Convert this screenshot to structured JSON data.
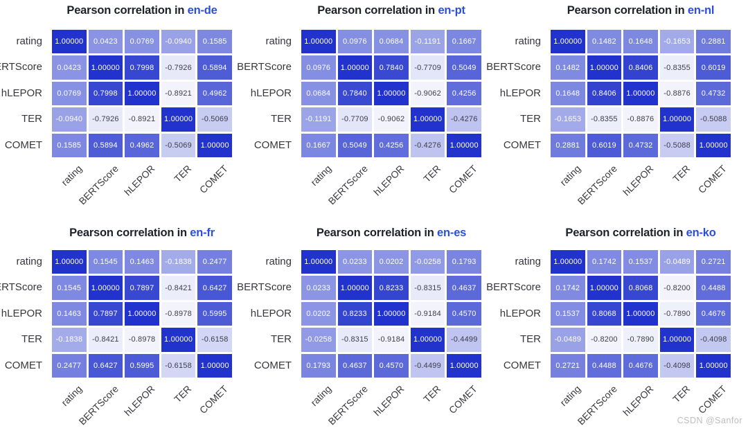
{
  "page": {
    "watermark": "CSDN @Sanfor"
  },
  "colors": {
    "cmap_low": "#f2f3fb",
    "cmap_high": "#2133cc",
    "title_text": "#1d2129",
    "title_lang": "#2c4fdb",
    "axis_label_text": "#36363e",
    "cell_text_light": "#ffffff",
    "cell_text_dark": "#3c3d4a",
    "watermark_text": "#bdbdbd"
  },
  "chart_data": [
    {
      "type": "heatmap",
      "title_prefix": "Pearson correlation in ",
      "title_lang": "en-de",
      "title": "Pearson correlation in en-de",
      "categories": [
        "rating",
        "BERTScore",
        "hLEPOR",
        "TER",
        "COMET"
      ],
      "matrix": [
        [
          1.0,
          0.0423,
          0.0769,
          -0.094,
          0.1585
        ],
        [
          0.0423,
          1.0,
          0.7998,
          -0.7926,
          0.5894
        ],
        [
          0.0769,
          0.7998,
          1.0,
          -0.8921,
          0.4962
        ],
        [
          -0.094,
          -0.7926,
          -0.8921,
          1.0,
          -0.5069
        ],
        [
          0.1585,
          0.5894,
          0.4962,
          -0.5069,
          1.0
        ]
      ]
    },
    {
      "type": "heatmap",
      "title_prefix": "Pearson correlation in ",
      "title_lang": "en-pt",
      "title": "Pearson correlation in en-pt",
      "categories": [
        "rating",
        "BERTScore",
        "hLEPOR",
        "TER",
        "COMET"
      ],
      "matrix": [
        [
          1.0,
          0.0976,
          0.0684,
          -0.1191,
          0.1667
        ],
        [
          0.0976,
          1.0,
          0.784,
          -0.7709,
          0.5049
        ],
        [
          0.0684,
          0.784,
          1.0,
          -0.9062,
          0.4256
        ],
        [
          -0.1191,
          -0.7709,
          -0.9062,
          1.0,
          -0.4276
        ],
        [
          0.1667,
          0.5049,
          0.4256,
          -0.4276,
          1.0
        ]
      ]
    },
    {
      "type": "heatmap",
      "title_prefix": "Pearson correlation in ",
      "title_lang": "en-nl",
      "title": "Pearson correlation in en-nl",
      "categories": [
        "rating",
        "BERTScore",
        "hLEPOR",
        "TER",
        "COMET"
      ],
      "matrix": [
        [
          1.0,
          0.1482,
          0.1648,
          -0.1653,
          0.2881
        ],
        [
          0.1482,
          1.0,
          0.8406,
          -0.8355,
          0.6019
        ],
        [
          0.1648,
          0.8406,
          1.0,
          -0.8876,
          0.4732
        ],
        [
          -0.1653,
          -0.8355,
          -0.8876,
          1.0,
          -0.5088
        ],
        [
          0.2881,
          0.6019,
          0.4732,
          -0.5088,
          1.0
        ]
      ]
    },
    {
      "type": "heatmap",
      "title_prefix": "Pearson correlation in ",
      "title_lang": "en-fr",
      "title": "Pearson correlation in en-fr",
      "categories": [
        "rating",
        "BERTScore",
        "hLEPOR",
        "TER",
        "COMET"
      ],
      "matrix": [
        [
          1.0,
          0.1545,
          0.1463,
          -0.1838,
          0.2477
        ],
        [
          0.1545,
          1.0,
          0.7897,
          -0.8421,
          0.6427
        ],
        [
          0.1463,
          0.7897,
          1.0,
          -0.8978,
          0.5995
        ],
        [
          -0.1838,
          -0.8421,
          -0.8978,
          1.0,
          -0.6158
        ],
        [
          0.2477,
          0.6427,
          0.5995,
          -0.6158,
          1.0
        ]
      ]
    },
    {
      "type": "heatmap",
      "title_prefix": "Pearson correlation in ",
      "title_lang": "en-es",
      "title": "Pearson correlation in en-es",
      "categories": [
        "rating",
        "BERTScore",
        "hLEPOR",
        "TER",
        "COMET"
      ],
      "matrix": [
        [
          1.0,
          0.0233,
          0.0202,
          -0.0258,
          0.1793
        ],
        [
          0.0233,
          1.0,
          0.8233,
          -0.8315,
          0.4637
        ],
        [
          0.0202,
          0.8233,
          1.0,
          -0.9184,
          0.457
        ],
        [
          -0.0258,
          -0.8315,
          -0.9184,
          1.0,
          -0.4499
        ],
        [
          0.1793,
          0.4637,
          0.457,
          -0.4499,
          1.0
        ]
      ]
    },
    {
      "type": "heatmap",
      "title_prefix": "Pearson correlation in ",
      "title_lang": "en-ko",
      "title": "Pearson correlation in en-ko",
      "categories": [
        "rating",
        "BERTScore",
        "hLEPOR",
        "TER",
        "COMET"
      ],
      "matrix": [
        [
          1.0,
          0.1742,
          0.1537,
          -0.0489,
          0.2721
        ],
        [
          0.1742,
          1.0,
          0.8068,
          -0.82,
          0.4488
        ],
        [
          0.1537,
          0.8068,
          1.0,
          -0.789,
          0.4676
        ],
        [
          -0.0489,
          -0.82,
          -0.789,
          1.0,
          -0.4098
        ],
        [
          0.2721,
          0.4488,
          0.4676,
          -0.4098,
          1.0
        ]
      ]
    }
  ]
}
